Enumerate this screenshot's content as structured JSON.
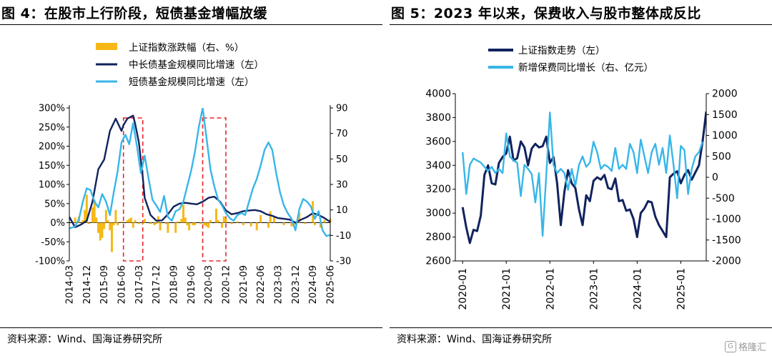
{
  "figures": [
    {
      "title": "图 4：在股市上行阶段，短债基金增幅放缓",
      "source": "资料来源：Wind、国海证券研究所"
    },
    {
      "title": "图 5：2023 年以来，保费收入与股市整体成反比",
      "source": "资料来源：Wind、国海证券研究所"
    }
  ],
  "watermark": {
    "text": "格隆汇",
    "icon": "G"
  },
  "colors": {
    "gold": "#f6b817",
    "navy": "#10235e",
    "sky": "#38b6e8",
    "red": "#e8252b"
  },
  "chart_data": [
    {
      "type": "bar+line",
      "title": "",
      "legend": {
        "placement": "top-left",
        "entries": [
          "上证指数涨跌幅（右、%）",
          "中长债基金规模同比增速（左）",
          "短债基金规模同比增速（左）"
        ]
      },
      "x_ticks": [
        "2014-03",
        "2014-12",
        "2015-09",
        "2016-06",
        "2017-03",
        "2017-12",
        "2018-09",
        "2019-06",
        "2020-03",
        "2020-12",
        "2021-09",
        "2022-06",
        "2023-03",
        "2023-12",
        "2024-09",
        "2025-06"
      ],
      "y_left": {
        "ylim": [
          -1.0,
          3.0
        ],
        "ticks": [
          "300%",
          "250%",
          "200%",
          "150%",
          "100%",
          "50%",
          "0%",
          "-50%",
          "-100%"
        ],
        "tick_values": [
          3,
          2.5,
          2,
          1.5,
          1,
          0.5,
          0,
          -0.5,
          -1
        ]
      },
      "y_right": {
        "ylim": [
          -30,
          90
        ],
        "ticks": [
          "90",
          "70",
          "50",
          "30",
          "10",
          "-10",
          "-30"
        ],
        "tick_values": [
          90,
          70,
          50,
          30,
          10,
          -10,
          -30
        ]
      },
      "highlight_ranges": [
        [
          "2016-07",
          "2017-05"
        ],
        [
          "2019-12",
          "2020-12"
        ]
      ],
      "series": [
        {
          "name": "上证指数涨跌幅（右、%）",
          "kind": "bar",
          "axis": "right",
          "x": [
            "2014-06",
            "2014-08",
            "2014-10",
            "2014-11",
            "2014-12",
            "2015-01",
            "2015-03",
            "2015-04",
            "2015-05",
            "2015-06",
            "2015-07",
            "2015-08",
            "2015-09",
            "2015-10",
            "2015-11",
            "2015-12",
            "2016-01",
            "2016-02",
            "2016-03",
            "2016-04",
            "2016-06",
            "2016-09",
            "2016-10",
            "2016-11",
            "2016-12",
            "2017-01",
            "2017-03",
            "2017-05",
            "2017-06",
            "2017-09",
            "2017-11",
            "2017-12",
            "2018-01",
            "2018-02",
            "2018-05",
            "2018-06",
            "2018-10",
            "2018-11",
            "2019-01",
            "2019-02",
            "2019-03",
            "2019-04",
            "2019-05",
            "2019-07",
            "2019-08",
            "2019-11",
            "2020-01",
            "2020-02",
            "2020-03",
            "2020-04",
            "2020-07",
            "2020-08",
            "2020-10",
            "2020-11",
            "2020-12",
            "2021-03",
            "2021-06",
            "2021-09",
            "2022-01",
            "2022-04",
            "2022-06",
            "2022-10",
            "2022-11",
            "2023-01",
            "2023-06",
            "2023-10",
            "2023-12",
            "2024-02",
            "2024-05",
            "2024-09",
            "2024-10",
            "2025-01",
            "2025-03",
            "2025-06"
          ],
          "values": [
            4,
            5,
            2,
            10,
            22,
            -1,
            12,
            18,
            4,
            -8,
            -14,
            -12,
            -5,
            10,
            2,
            -6,
            -23,
            -2,
            10,
            -2,
            1,
            2,
            3,
            4,
            -4,
            2,
            -1,
            -1,
            3,
            -1,
            -2,
            -1,
            5,
            -6,
            -1,
            -8,
            -8,
            1,
            3,
            14,
            4,
            -2,
            -6,
            -2,
            -2,
            -1,
            -2,
            -3,
            -4,
            2,
            11,
            2,
            -4,
            5,
            3,
            -1,
            1,
            -2,
            -3,
            -6,
            6,
            -4,
            9,
            5,
            -2,
            -3,
            -2,
            8,
            -1,
            17,
            -2,
            -4,
            2,
            3
          ]
        },
        {
          "name": "中长债基金规模同比增速（左）",
          "kind": "line",
          "axis": "left",
          "x": [
            "2014-03",
            "2014-06",
            "2014-09",
            "2014-12",
            "2015-03",
            "2015-06",
            "2015-09",
            "2015-12",
            "2016-03",
            "2016-06",
            "2016-07",
            "2016-09",
            "2016-12",
            "2017-01",
            "2017-03",
            "2017-05",
            "2017-06",
            "2017-09",
            "2017-12",
            "2018-03",
            "2018-06",
            "2018-09",
            "2018-12",
            "2019-03",
            "2019-06",
            "2019-09",
            "2019-12",
            "2020-03",
            "2020-06",
            "2020-09",
            "2020-12",
            "2021-03",
            "2021-06",
            "2021-09",
            "2021-12",
            "2022-03",
            "2022-06",
            "2022-09",
            "2022-12",
            "2023-03",
            "2023-06",
            "2023-09",
            "2023-12",
            "2024-03",
            "2024-06",
            "2024-09",
            "2024-12",
            "2025-03",
            "2025-06"
          ],
          "values": [
            0.15,
            -0.12,
            -0.05,
            0.05,
            0.55,
            1.4,
            1.65,
            2.4,
            2.72,
            2.4,
            2.55,
            2.72,
            2.8,
            2.6,
            2.1,
            1.2,
            0.65,
            0.2,
            0.05,
            0.06,
            0.22,
            0.42,
            0.5,
            0.52,
            0.5,
            0.48,
            0.55,
            0.65,
            0.68,
            0.55,
            0.32,
            0.22,
            0.25,
            0.3,
            0.32,
            0.33,
            0.3,
            0.22,
            0.18,
            0.12,
            0.1,
            0.08,
            0.0,
            0.08,
            0.15,
            0.25,
            0.2,
            0.12,
            0.02
          ]
        },
        {
          "name": "短债基金规模同比增速（左）",
          "kind": "line",
          "axis": "left",
          "x": [
            "2014-03",
            "2014-06",
            "2014-08",
            "2014-10",
            "2014-12",
            "2015-02",
            "2015-04",
            "2015-06",
            "2015-08",
            "2015-10",
            "2015-12",
            "2016-02",
            "2016-04",
            "2016-06",
            "2016-08",
            "2016-10",
            "2016-12",
            "2017-02",
            "2017-04",
            "2017-06",
            "2017-08",
            "2017-10",
            "2017-12",
            "2018-02",
            "2018-04",
            "2018-06",
            "2018-08",
            "2018-10",
            "2018-12",
            "2019-02",
            "2019-04",
            "2019-06",
            "2019-08",
            "2019-10",
            "2019-12",
            "2020-02",
            "2020-04",
            "2020-06",
            "2020-08",
            "2020-10",
            "2020-12",
            "2021-02",
            "2021-04",
            "2021-06",
            "2021-08",
            "2021-10",
            "2021-12",
            "2022-02",
            "2022-04",
            "2022-06",
            "2022-08",
            "2022-10",
            "2022-12",
            "2023-02",
            "2023-04",
            "2023-06",
            "2023-08",
            "2023-10",
            "2023-12",
            "2024-02",
            "2024-04",
            "2024-06",
            "2024-08",
            "2024-10",
            "2024-12",
            "2025-02",
            "2025-04",
            "2025-06"
          ],
          "values": [
            -0.15,
            -0.1,
            0.1,
            0.55,
            0.9,
            0.85,
            0.55,
            0.4,
            0.75,
            0.55,
            0.2,
            0.8,
            1.35,
            2.1,
            2.3,
            2.05,
            2.6,
            2.0,
            1.3,
            1.75,
            1.15,
            0.6,
            0.45,
            0.28,
            0.7,
            0.15,
            0.05,
            0.3,
            0.35,
            0.55,
            0.95,
            1.35,
            1.85,
            2.5,
            3.0,
            2.2,
            1.4,
            0.95,
            0.6,
            0.45,
            0.25,
            0.12,
            0.05,
            0.2,
            0.25,
            0.2,
            0.55,
            0.9,
            1.15,
            1.5,
            1.9,
            2.1,
            1.9,
            1.3,
            0.8,
            0.45,
            0.25,
            0.1,
            -0.2,
            0.35,
            0.62,
            0.55,
            0.42,
            0.1,
            0.3,
            -0.2,
            -0.35,
            -0.32
          ]
        }
      ]
    },
    {
      "type": "line",
      "title": "",
      "legend": {
        "placement": "top-center",
        "entries": [
          "上证指数走势（左）",
          "新增保费同比增长（右、亿元）"
        ]
      },
      "x_ticks": [
        "2020-01",
        "2021-01",
        "2022-01",
        "2023-01",
        "2024-01",
        "2025-01"
      ],
      "y_left": {
        "ylim": [
          2600,
          4000
        ],
        "ticks": [
          "4000",
          "3800",
          "3600",
          "3400",
          "3200",
          "3000",
          "2800",
          "2600"
        ],
        "tick_values": [
          4000,
          3800,
          3600,
          3400,
          3200,
          3000,
          2800,
          2600
        ]
      },
      "y_right": {
        "ylim": [
          -2000,
          2000
        ],
        "ticks": [
          "2000",
          "1500",
          "1000",
          "500",
          "0",
          "-500",
          "-1000",
          "-1500",
          "-2000"
        ],
        "tick_values": [
          2000,
          1500,
          1000,
          500,
          0,
          -500,
          -1000,
          -1500,
          -2000
        ]
      },
      "series": [
        {
          "name": "上证指数走势（左）",
          "kind": "line",
          "axis": "left",
          "x": [
            "2020-01",
            "2020-02",
            "2020-03",
            "2020-04",
            "2020-05",
            "2020-06",
            "2020-07",
            "2020-08",
            "2020-09",
            "2020-10",
            "2020-11",
            "2020-12",
            "2021-01",
            "2021-02",
            "2021-03",
            "2021-04",
            "2021-05",
            "2021-06",
            "2021-07",
            "2021-08",
            "2021-09",
            "2021-10",
            "2021-11",
            "2021-12",
            "2022-01",
            "2022-02",
            "2022-03",
            "2022-04",
            "2022-05",
            "2022-06",
            "2022-07",
            "2022-08",
            "2022-09",
            "2022-10",
            "2022-11",
            "2022-12",
            "2023-01",
            "2023-02",
            "2023-03",
            "2023-04",
            "2023-05",
            "2023-06",
            "2023-07",
            "2023-08",
            "2023-09",
            "2023-10",
            "2023-11",
            "2023-12",
            "2024-01",
            "2024-02",
            "2024-03",
            "2024-04",
            "2024-05",
            "2024-06",
            "2024-07",
            "2024-08",
            "2024-09",
            "2024-10",
            "2024-11",
            "2024-12",
            "2025-01",
            "2025-02",
            "2025-03",
            "2025-04",
            "2025-05",
            "2025-06",
            "2025-07",
            "2025-08"
          ],
          "values": [
            3050,
            2880,
            2750,
            2860,
            2850,
            2980,
            3320,
            3400,
            3250,
            3240,
            3420,
            3470,
            3500,
            3640,
            3440,
            3460,
            3600,
            3550,
            3400,
            3540,
            3580,
            3550,
            3560,
            3640,
            3420,
            3470,
            3250,
            2900,
            3180,
            3360,
            3250,
            3210,
            3030,
            2900,
            3150,
            3100,
            3270,
            3300,
            3280,
            3320,
            3210,
            3200,
            3290,
            3100,
            3110,
            3020,
            3030,
            2950,
            2800,
            3000,
            3040,
            3100,
            3090,
            2970,
            2900,
            2850,
            2800,
            3300,
            3330,
            3350,
            3250,
            3320,
            3360,
            3280,
            3340,
            3400,
            3600,
            3850
          ]
        },
        {
          "name": "新增保费同比增长（右、亿元）",
          "kind": "line",
          "axis": "right",
          "x": [
            "2020-01",
            "2020-02",
            "2020-03",
            "2020-04",
            "2020-05",
            "2020-06",
            "2020-07",
            "2020-08",
            "2020-09",
            "2020-10",
            "2020-11",
            "2020-12",
            "2021-01",
            "2021-02",
            "2021-03",
            "2021-04",
            "2021-05",
            "2021-06",
            "2021-07",
            "2021-08",
            "2021-09",
            "2021-10",
            "2021-11",
            "2021-12",
            "2022-01",
            "2022-02",
            "2022-03",
            "2022-04",
            "2022-05",
            "2022-06",
            "2022-07",
            "2022-08",
            "2022-09",
            "2022-10",
            "2022-11",
            "2022-12",
            "2023-01",
            "2023-02",
            "2023-03",
            "2023-04",
            "2023-05",
            "2023-06",
            "2023-07",
            "2023-08",
            "2023-09",
            "2023-10",
            "2023-11",
            "2023-12",
            "2024-01",
            "2024-02",
            "2024-03",
            "2024-04",
            "2024-05",
            "2024-06",
            "2024-07",
            "2024-08",
            "2024-09",
            "2024-10",
            "2024-11",
            "2024-12",
            "2025-01",
            "2025-02",
            "2025-03",
            "2025-04",
            "2025-05",
            "2025-06",
            "2025-07"
          ],
          "values": [
            600,
            -400,
            300,
            450,
            400,
            350,
            250,
            150,
            250,
            100,
            200,
            100,
            1050,
            500,
            400,
            350,
            -450,
            300,
            200,
            80,
            -600,
            100,
            -1400,
            50,
            1550,
            300,
            100,
            200,
            100,
            -300,
            200,
            -200,
            300,
            500,
            250,
            350,
            850,
            600,
            200,
            300,
            250,
            150,
            700,
            200,
            300,
            200,
            800,
            600,
            100,
            900,
            500,
            100,
            600,
            800,
            300,
            700,
            100,
            1000,
            300,
            -500,
            750,
            650,
            -400,
            200,
            500,
            600,
            850
          ]
        }
      ]
    }
  ]
}
